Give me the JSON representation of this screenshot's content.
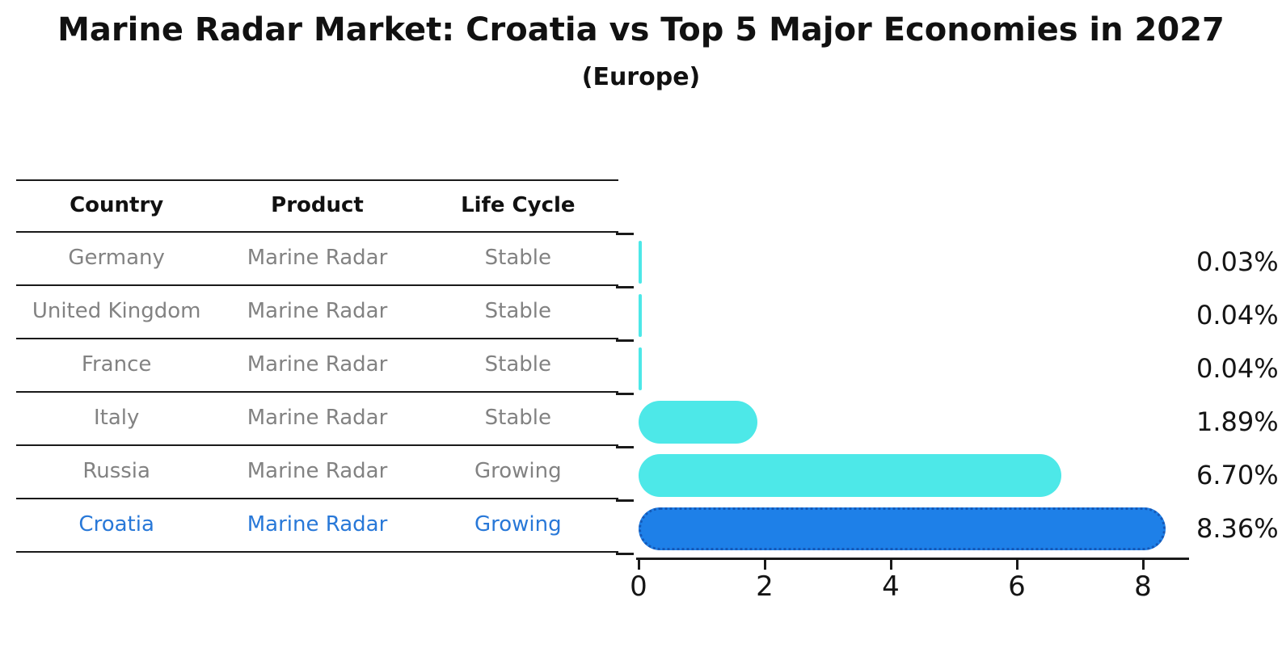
{
  "title": "Marine Radar Market: Croatia vs Top 5 Major Economies in 2027",
  "subtitle": "(Europe)",
  "table": {
    "headers": [
      "Country",
      "Product",
      "Life Cycle"
    ],
    "rows": [
      {
        "country": "Germany",
        "product": "Marine Radar",
        "life_cycle": "Stable",
        "highlight": false
      },
      {
        "country": "United Kingdom",
        "product": "Marine Radar",
        "life_cycle": "Stable",
        "highlight": false
      },
      {
        "country": "France",
        "product": "Marine Radar",
        "life_cycle": "Stable",
        "highlight": false
      },
      {
        "country": "Italy",
        "product": "Marine Radar",
        "life_cycle": "Stable",
        "highlight": false
      },
      {
        "country": "Russia",
        "product": "Marine Radar",
        "life_cycle": "Growing",
        "highlight": false
      },
      {
        "country": "Croatia",
        "product": "Marine Radar",
        "life_cycle": "Growing",
        "highlight": true
      }
    ]
  },
  "chart_data": {
    "type": "bar",
    "orientation": "horizontal",
    "title": "Marine Radar Market: Croatia vs Top 5 Major Economies in 2027",
    "subtitle": "(Europe)",
    "categories": [
      "Germany",
      "United Kingdom",
      "France",
      "Italy",
      "Russia",
      "Croatia"
    ],
    "values": [
      0.03,
      0.04,
      0.04,
      1.89,
      6.7,
      8.36
    ],
    "value_labels": [
      "0.03%",
      "0.04%",
      "0.04%",
      "1.89%",
      "6.70%",
      "8.36%"
    ],
    "xlabel": "",
    "ylabel": "",
    "xlim": [
      0,
      8.7
    ],
    "xticks": [
      "0",
      "2",
      "4",
      "6",
      "8"
    ],
    "grid": false,
    "legend": "none",
    "highlight_index": 5
  },
  "colors": {
    "bar_cyan": "#4DE8E8",
    "bar_blue": "#1E80E8",
    "bar_blue_edge": "#1559B8",
    "highlight_text": "#2878D8",
    "row_text": "#828282",
    "header_text": "#111111",
    "axis": "#1a1a1a",
    "background": "#ffffff"
  }
}
